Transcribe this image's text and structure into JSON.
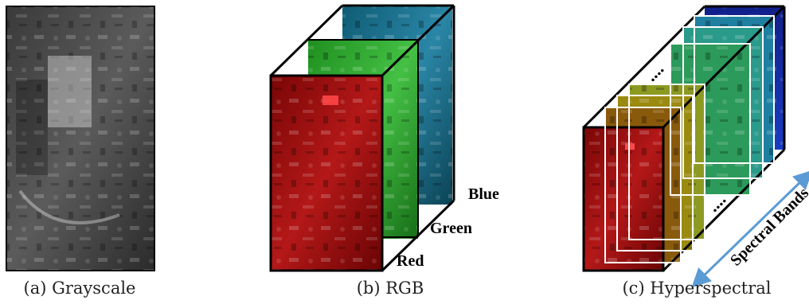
{
  "figure": {
    "panels": [
      {
        "id": "a",
        "caption": "(a) Grayscale"
      },
      {
        "id": "b",
        "caption": "(b) RGB"
      },
      {
        "id": "c",
        "caption": "(c) Hyperspectral"
      }
    ],
    "rgb_labels": {
      "red": "Red",
      "green": "Green",
      "blue": "Blue"
    },
    "hyperspectral": {
      "axis_label": "Spectral Bands",
      "ellipsis_top": "....",
      "ellipsis_bottom": "...."
    },
    "colors": {
      "gray_band": "#5a5a5a",
      "red_band": "#b01010",
      "green_band": "#2fb02f",
      "blue_band": "#1c6f8c",
      "arrow": "#5b9bd5",
      "frame": "#000000"
    }
  }
}
